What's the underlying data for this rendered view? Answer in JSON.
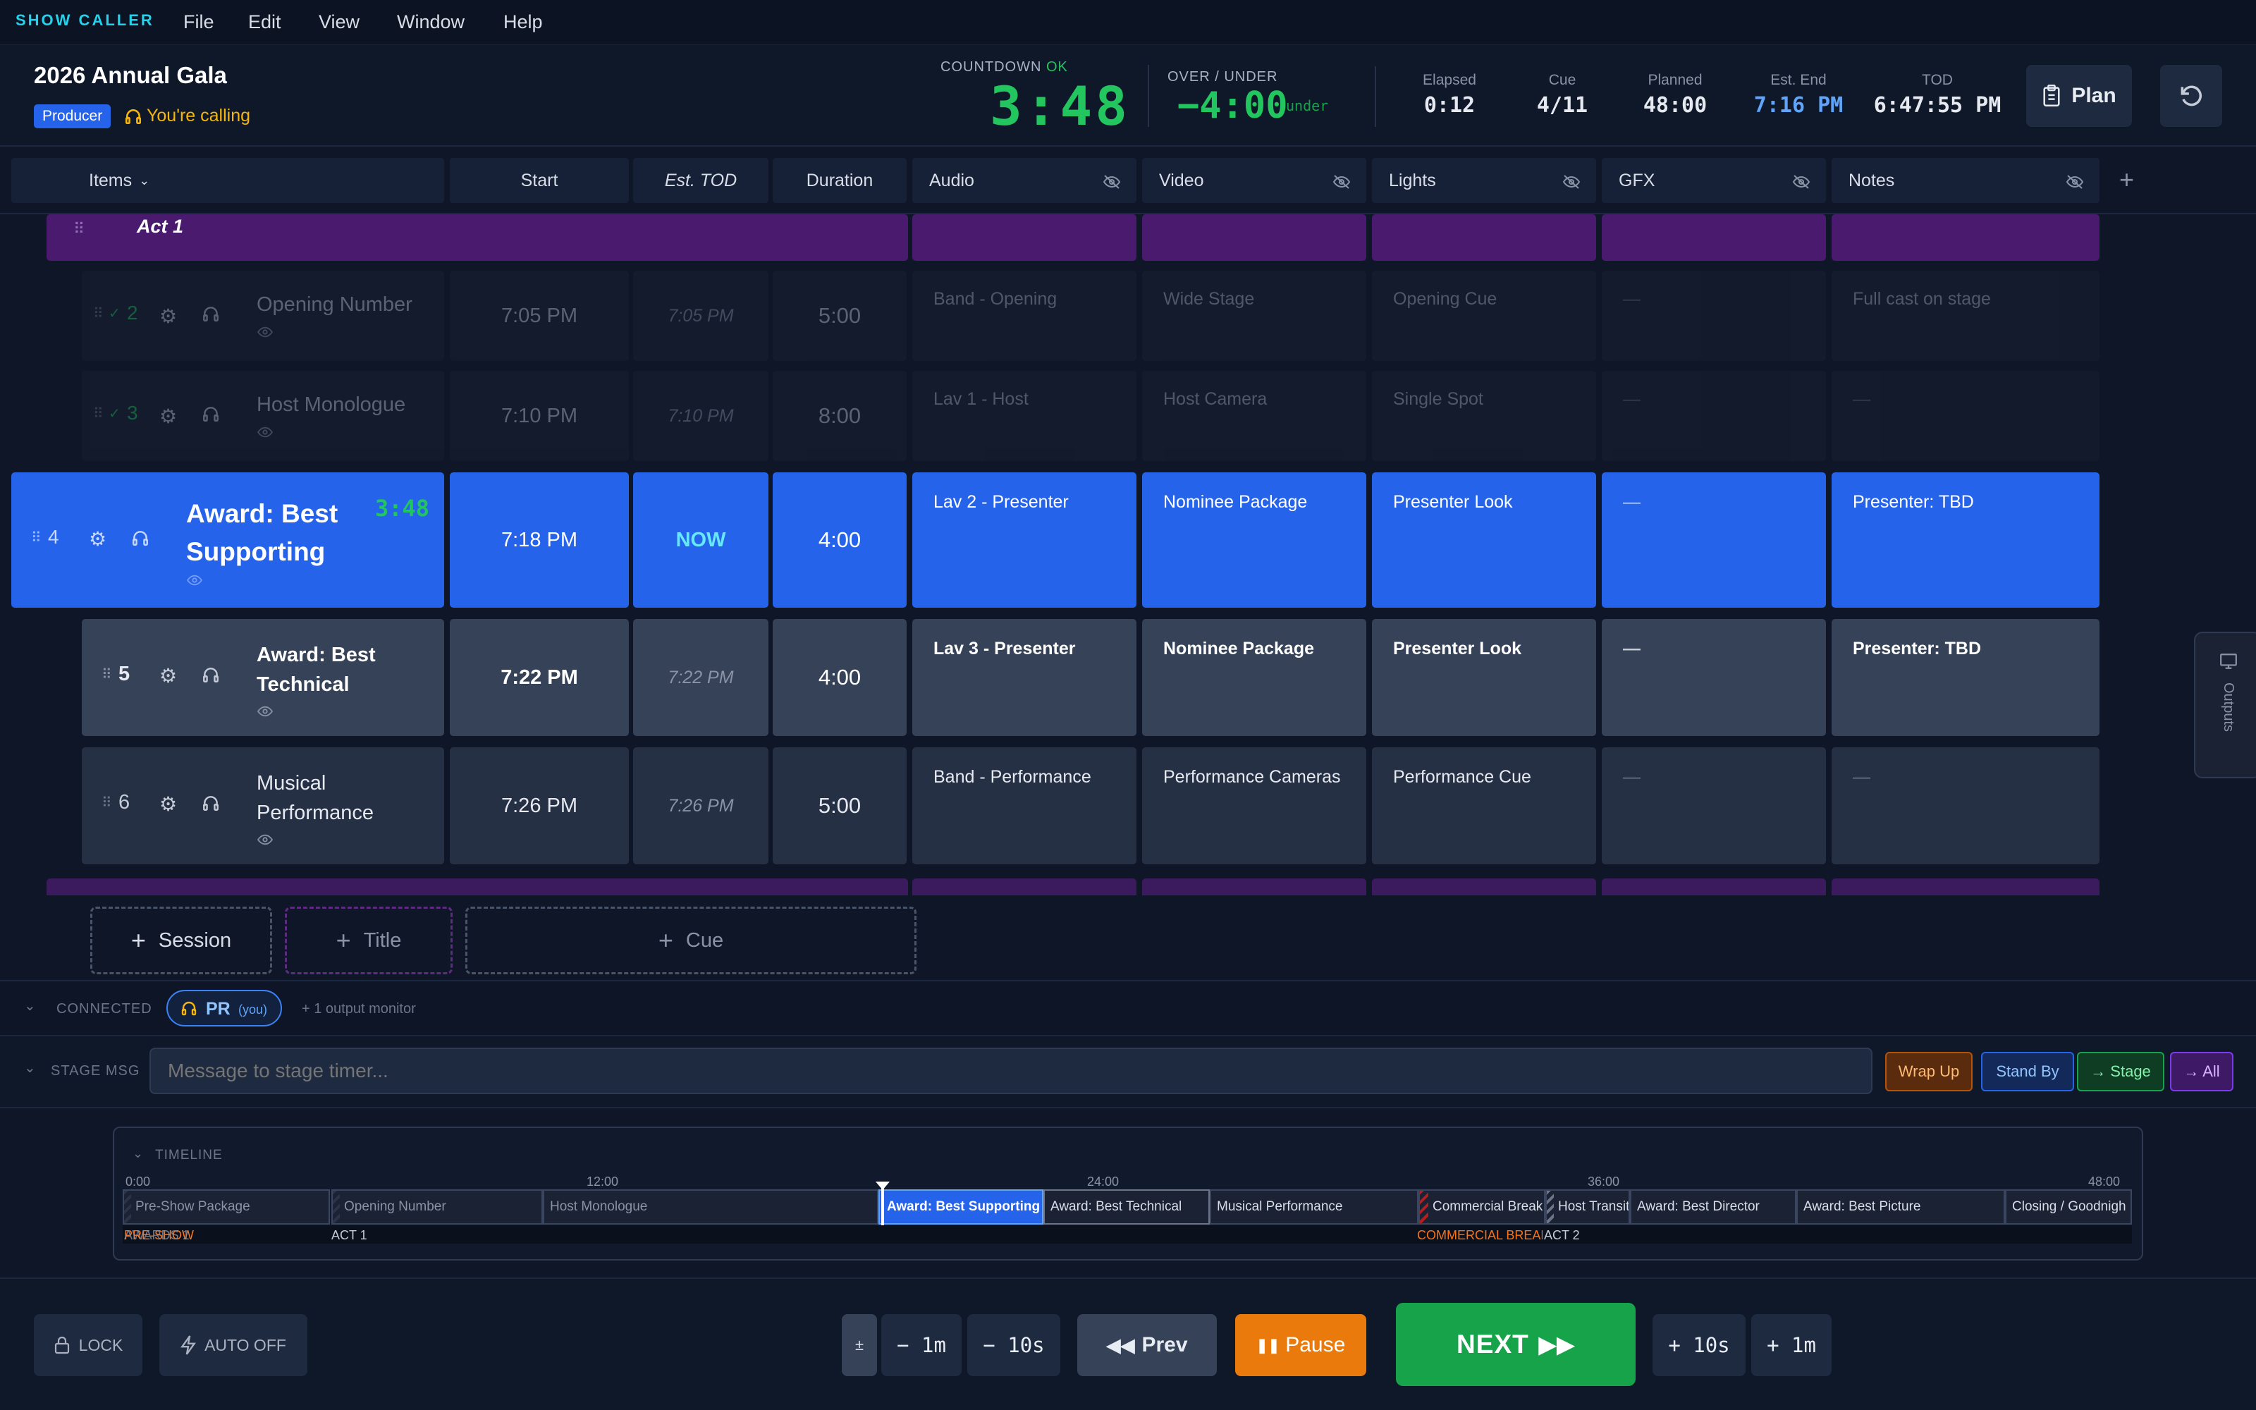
{
  "app": {
    "brand": "SHOW CALLER",
    "menu": [
      "File",
      "Edit",
      "View",
      "Window",
      "Help"
    ]
  },
  "header": {
    "title": "2026 Annual Gala",
    "role_badge": "Producer",
    "calling": "You're calling",
    "countdown_label": "COUNTDOWN",
    "countdown_status": "OK",
    "countdown_value": "3:48",
    "over_under_label": "OVER / UNDER",
    "over_under_value": "−4:00",
    "over_under_state": "under",
    "stats": [
      {
        "label": "Elapsed",
        "value": "0:12"
      },
      {
        "label": "Cue",
        "value": "4/11"
      },
      {
        "label": "Planned",
        "value": "48:00"
      },
      {
        "label": "Est. End",
        "value": "7:16 PM"
      },
      {
        "label": "TOD",
        "value": "6:47:55 PM"
      }
    ],
    "plan_button": "Plan"
  },
  "columns": {
    "items": "Items",
    "start": "Start",
    "est_tod": "Est. TOD",
    "duration": "Duration",
    "audio": "Audio",
    "video": "Video",
    "lights": "Lights",
    "gfx": "GFX",
    "notes": "Notes",
    "add": "+"
  },
  "section": {
    "title": "Act 1"
  },
  "rows": [
    {
      "num": "2",
      "title": "Opening Number",
      "start": "7:05 PM",
      "est": "7:05 PM",
      "dur": "5:00",
      "audio": "Band - Opening",
      "video": "Wide Stage",
      "lights": "Opening Cue",
      "gfx": "—",
      "notes": "Full cast on stage",
      "state": "done"
    },
    {
      "num": "3",
      "title": "Host Monologue",
      "start": "7:10 PM",
      "est": "7:10 PM",
      "dur": "8:00",
      "audio": "Lav 1 - Host",
      "video": "Host Camera",
      "lights": "Single Spot",
      "gfx": "—",
      "notes": "—",
      "state": "done"
    },
    {
      "num": "4",
      "title": "Award: Best Supporting",
      "timer": "3:48",
      "start": "7:18 PM",
      "est": "NOW",
      "dur": "4:00",
      "audio": "Lav 2 - Presenter",
      "video": "Nominee Package",
      "lights": "Presenter Look",
      "gfx": "—",
      "notes": "Presenter: TBD",
      "state": "live"
    },
    {
      "num": "5",
      "title": "Award: Best Technical",
      "start": "7:22 PM",
      "est": "7:22 PM",
      "dur": "4:00",
      "audio": "Lav 3 - Presenter",
      "video": "Nominee Package",
      "lights": "Presenter Look",
      "gfx": "—",
      "notes": "Presenter: TBD",
      "state": "next"
    },
    {
      "num": "6",
      "title": "Musical Performance",
      "start": "7:26 PM",
      "est": "7:26 PM",
      "dur": "5:00",
      "audio": "Band - Performance",
      "video": "Performance Cameras",
      "lights": "Performance Cue",
      "gfx": "—",
      "notes": "—",
      "state": "upcoming"
    }
  ],
  "add_buttons": {
    "session": "Session",
    "title": "Title",
    "cue": "Cue"
  },
  "connected": {
    "label": "CONNECTED",
    "user": "PR",
    "you": "(you)",
    "monitors": "+ 1 output monitor"
  },
  "stage_msg": {
    "label": "STAGE MSG",
    "placeholder": "Message to stage timer...",
    "buttons": [
      "Wrap Up",
      "Stand By",
      "→ Stage",
      "→ All"
    ]
  },
  "timeline": {
    "label": "TIMELINE",
    "ticks": [
      "0:00",
      "12:00",
      "24:00",
      "36:00",
      "48:00"
    ],
    "segments": [
      "Pre-Show Package",
      "Opening Number",
      "Host Monologue",
      "Award: Best Supporting",
      "Award: Best Technical",
      "Musical Performance",
      "Commercial Break",
      "Host Transit",
      "Award: Best Director",
      "Award: Best Picture",
      "Closing / Goodnigh"
    ],
    "sections": [
      "PRE-SHOW",
      "AWARDS 1",
      "ACT 1",
      "COMMERCIAL BREAK",
      "ACT 2"
    ]
  },
  "controls": {
    "lock": "LOCK",
    "auto": "AUTO OFF",
    "plusminus": "±",
    "minus1m": "− 1m",
    "minus10s": "− 10s",
    "prev": "Prev",
    "pause": "Pause",
    "next": "NEXT",
    "plus10s": "+ 10s",
    "plus1m": "+ 1m"
  },
  "side_tab": "Outputs"
}
